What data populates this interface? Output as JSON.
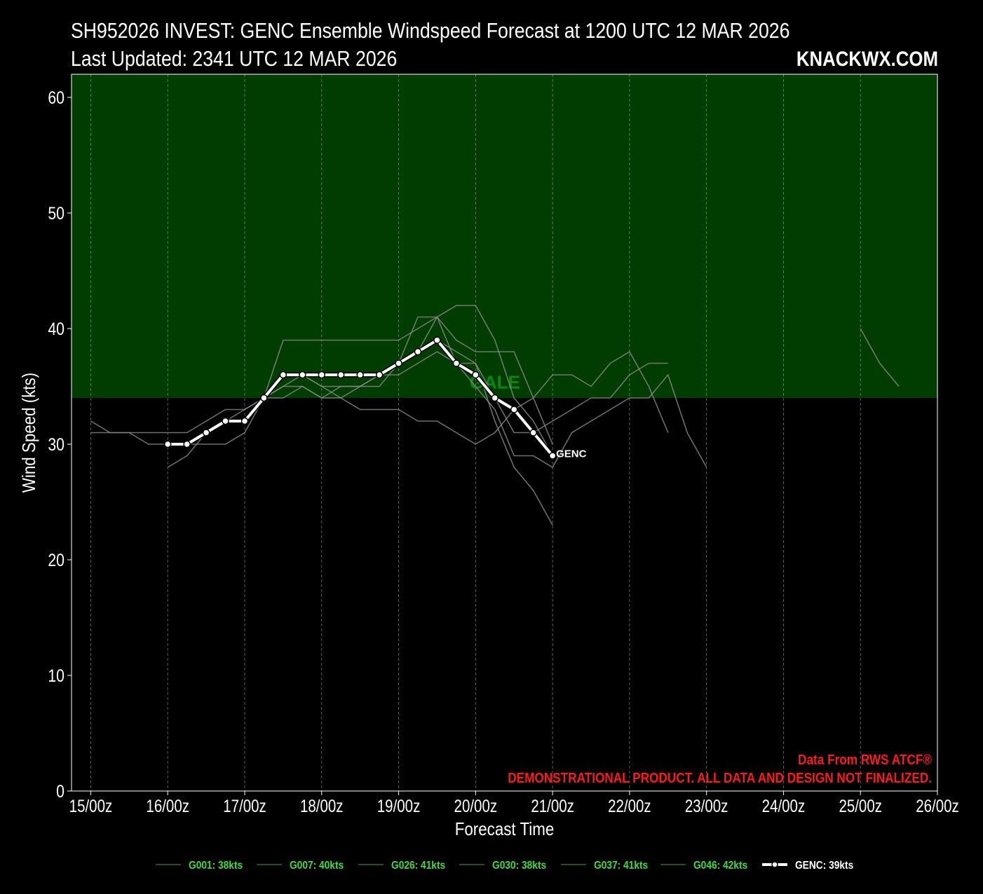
{
  "header": {
    "title": "SH952026 INVEST: GENC Ensemble Windspeed Forecast at 1200 UTC 12 MAR 2026",
    "subtitle": "Last Updated: 2341 UTC 12 MAR 2026",
    "brand": "KNACKWX.COM"
  },
  "colors": {
    "background": "#000000",
    "gale_band": "#013c01",
    "gale_label": "#0a8a0a",
    "member_line": "#8a8a8a",
    "genc_line": "#ffffff",
    "legend_text": "#3ddc3d",
    "credit_text": "#ff1a1a"
  },
  "chart_data": {
    "type": "line",
    "xlabel": "Forecast Time",
    "ylabel": "Wind Speed (kts)",
    "ylim": [
      0,
      62
    ],
    "xlim": [
      "14/18z",
      "26/00z"
    ],
    "yticks": [
      0,
      10,
      20,
      30,
      40,
      50,
      60
    ],
    "xticks": [
      "15/00z",
      "16/00z",
      "17/00z",
      "18/00z",
      "19/00z",
      "20/00z",
      "21/00z",
      "22/00z",
      "23/00z",
      "24/00z",
      "25/00z",
      "26/00z"
    ],
    "grid": "vertical dashed",
    "bands": [
      {
        "from": 34,
        "to": 62,
        "label": "GALE"
      }
    ],
    "series": [
      {
        "name": "G001: 38kts",
        "x": [
          "15/00z",
          "15/06z",
          "15/12z",
          "15/18z",
          "16/00z",
          "16/06z",
          "16/12z",
          "16/18z",
          "17/00z",
          "17/06z",
          "17/12z",
          "17/18z",
          "18/00z",
          "18/06z",
          "18/12z",
          "18/18z",
          "19/00z",
          "19/06z",
          "19/12z",
          "19/18z",
          "20/00z",
          "20/06z",
          "20/12z",
          "20/18z",
          "21/00z",
          "21/06z",
          "21/12z",
          "21/18z",
          "22/00z",
          "22/06z",
          "22/12z"
        ],
        "values": [
          31,
          31,
          31,
          31,
          31,
          31,
          32,
          33,
          33,
          34,
          35,
          35,
          34,
          34,
          33,
          33,
          33,
          32,
          32,
          31,
          30,
          31,
          33,
          34,
          36,
          36,
          35,
          37,
          38,
          35,
          31
        ]
      },
      {
        "name": "G007: 40kts",
        "x": [
          "15/00z",
          "15/06z",
          "15/12z",
          "15/18z",
          "16/00z",
          "16/06z",
          "16/12z",
          "16/18z",
          "17/00z",
          "17/06z",
          "17/12z",
          "17/18z",
          "18/00z",
          "18/06z",
          "18/12z",
          "18/18z",
          "19/00z",
          "19/06z",
          "19/12z",
          "19/18z",
          "20/00z",
          "20/06z",
          "20/12z",
          "20/18z",
          "21/00z"
        ],
        "values": [
          32,
          31,
          31,
          30,
          30,
          30,
          30,
          30,
          31,
          34,
          39,
          39,
          39,
          39,
          39,
          39,
          39,
          40,
          41,
          39,
          38,
          38,
          38,
          34,
          30
        ]
      },
      {
        "name": "G026: 41kts",
        "x": [
          "16/00z",
          "16/06z",
          "16/12z",
          "16/18z",
          "17/00z",
          "17/06z",
          "17/12z",
          "17/18z",
          "18/00z",
          "18/06z",
          "18/12z",
          "18/18z",
          "19/00z",
          "19/06z",
          "19/12z",
          "19/18z",
          "20/00z",
          "20/06z",
          "20/12z",
          "20/18z",
          "21/00z",
          "21/06z",
          "21/12z",
          "21/18z",
          "22/00z",
          "22/06z",
          "22/12z"
        ],
        "values": [
          28,
          29,
          31,
          32,
          32,
          34,
          35,
          36,
          35,
          35,
          35,
          36,
          36,
          37,
          38,
          37,
          37,
          34,
          31,
          31,
          32,
          33,
          34,
          34,
          36,
          37,
          37
        ]
      },
      {
        "name": "G030: 38kts",
        "x": [
          "16/00z",
          "16/06z",
          "16/12z",
          "16/18z",
          "17/00z",
          "17/06z",
          "17/12z",
          "17/18z",
          "18/00z",
          "18/06z",
          "18/12z",
          "18/18z",
          "19/00z",
          "19/06z",
          "19/12z",
          "19/18z",
          "20/00z",
          "20/06z",
          "20/12z",
          "20/18z",
          "21/00z"
        ],
        "values": [
          30,
          30,
          31,
          32,
          33,
          34,
          34,
          35,
          34,
          35,
          35,
          36,
          37,
          38,
          39,
          38,
          37,
          32,
          28,
          26,
          23
        ]
      },
      {
        "name": "G037: 41kts",
        "x": [
          "16/00z",
          "16/06z",
          "16/12z",
          "16/18z",
          "17/00z",
          "17/06z",
          "17/12z",
          "17/18z",
          "18/00z",
          "18/06z",
          "18/12z",
          "18/18z",
          "19/00z",
          "19/06z",
          "19/12z",
          "19/18z",
          "20/00z",
          "20/06z",
          "20/12z",
          "20/18z",
          "21/00z",
          "21/06z",
          "21/12z",
          "21/18z",
          "22/00z",
          "22/06z",
          "22/12z",
          "22/18z",
          "23/00z"
        ],
        "values": [
          30,
          30,
          31,
          32,
          32,
          34,
          36,
          36,
          35,
          34,
          35,
          35,
          37,
          41,
          41,
          37,
          35,
          33,
          29,
          29,
          28,
          31,
          32,
          33,
          34,
          34,
          36,
          31,
          28
        ]
      },
      {
        "name": "G046: 42kts",
        "x": [
          "17/06z",
          "17/12z",
          "17/18z",
          "18/00z",
          "18/06z",
          "18/12z",
          "18/18z",
          "19/00z",
          "19/06z",
          "19/12z",
          "19/18z",
          "20/00z",
          "20/06z",
          "20/12z",
          "20/18z",
          "21/00z",
          "25/00z",
          "25/06z",
          "25/12z"
        ],
        "values": [
          34,
          36,
          36,
          36,
          36,
          36,
          36,
          37,
          38,
          41,
          42,
          42,
          39,
          34,
          32,
          29,
          40,
          37,
          35
        ]
      },
      {
        "name": "GENC: 39kts",
        "x": [
          "16/00z",
          "16/06z",
          "16/12z",
          "16/18z",
          "17/00z",
          "17/06z",
          "17/12z",
          "17/18z",
          "18/00z",
          "18/06z",
          "18/12z",
          "18/18z",
          "19/00z",
          "19/06z",
          "19/12z",
          "19/18z",
          "20/00z",
          "20/06z",
          "20/12z",
          "20/18z",
          "21/00z"
        ],
        "values": [
          30,
          30,
          31,
          32,
          32,
          34,
          36,
          36,
          36,
          36,
          36,
          36,
          37,
          38,
          39,
          37,
          36,
          34,
          33,
          31,
          29
        ]
      }
    ],
    "annotations": [
      "GENC",
      "GALE"
    ]
  },
  "credits": {
    "line1": "Data From RWS ATCF®",
    "line2": "DEMONSTRATIONAL PRODUCT. ALL DATA AND DESIGN NOT FINALIZED."
  }
}
